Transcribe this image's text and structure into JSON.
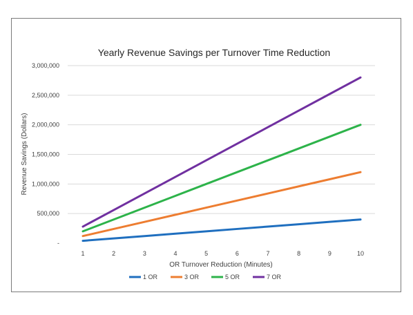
{
  "chart_data": {
    "type": "line",
    "title": "Yearly Revenue Savings per Turnover Time Reduction",
    "xlabel": "OR Turnover Reduction (Minutes)",
    "ylabel": "Revenue Savings (Dollars)",
    "categories": [
      1,
      2,
      3,
      4,
      5,
      6,
      7,
      8,
      9,
      10
    ],
    "xlim": [
      1,
      10
    ],
    "ylim": [
      0,
      3000000
    ],
    "y_ticks": [
      0,
      500000,
      1000000,
      1500000,
      2000000,
      2500000,
      3000000
    ],
    "y_tick_labels": [
      "-",
      "500,000",
      "1,000,000",
      "1,500,000",
      "2,000,000",
      "2,500,000",
      "3,000,000"
    ],
    "grid": "horizontal",
    "legend_position": "bottom",
    "series": [
      {
        "name": "1 OR",
        "color": "#1f6fbf",
        "values": [
          40000,
          80000,
          120000,
          160000,
          200000,
          240000,
          280000,
          320000,
          360000,
          400000
        ]
      },
      {
        "name": "3 OR",
        "color": "#ed7d31",
        "values": [
          120000,
          240000,
          360000,
          480000,
          600000,
          720000,
          840000,
          960000,
          1080000,
          1200000
        ]
      },
      {
        "name": "5 OR",
        "color": "#2db34a",
        "values": [
          200000,
          400000,
          600000,
          800000,
          1000000,
          1200000,
          1400000,
          1600000,
          1800000,
          2000000
        ]
      },
      {
        "name": "7 OR",
        "color": "#7030a0",
        "values": [
          280000,
          560000,
          840000,
          1120000,
          1400000,
          1680000,
          1960000,
          2240000,
          2520000,
          2800000
        ]
      }
    ]
  }
}
